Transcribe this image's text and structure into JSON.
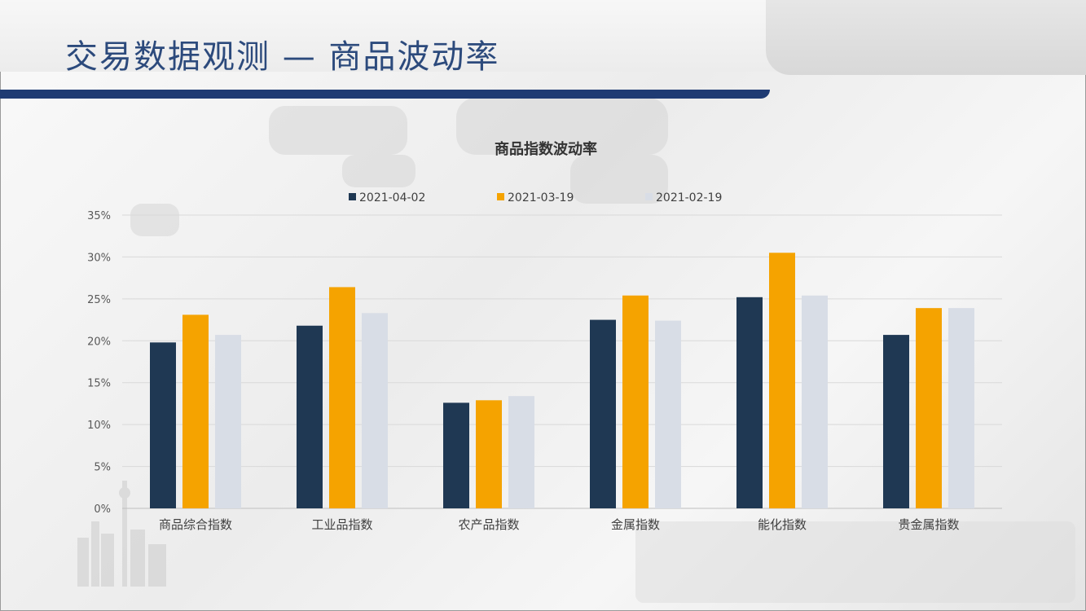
{
  "slide": {
    "title": "交易数据观测 — 商品波动率"
  },
  "chart_data": {
    "type": "bar",
    "title": "商品指数波动率",
    "categories": [
      "商品综合指数",
      "工业品指数",
      "农产品指数",
      "金属指数",
      "能化指数",
      "贵金属指数"
    ],
    "series": [
      {
        "name": "2021-04-02",
        "color": "#1f3853",
        "values": [
          19.8,
          21.8,
          12.6,
          22.5,
          25.2,
          20.7
        ]
      },
      {
        "name": "2021-03-19",
        "color": "#f5a300",
        "values": [
          23.1,
          26.4,
          12.9,
          25.4,
          30.5,
          23.9
        ]
      },
      {
        "name": "2021-02-19",
        "color": "#d8dde6",
        "values": [
          20.7,
          23.3,
          13.4,
          22.4,
          25.4,
          23.9
        ]
      }
    ],
    "ylim": [
      0,
      35
    ],
    "yticks": [
      0,
      5,
      10,
      15,
      20,
      25,
      30,
      35
    ],
    "ytick_labels": [
      "0%",
      "5%",
      "10%",
      "15%",
      "20%",
      "25%",
      "30%",
      "35%"
    ],
    "grid": true,
    "legend": "top"
  }
}
